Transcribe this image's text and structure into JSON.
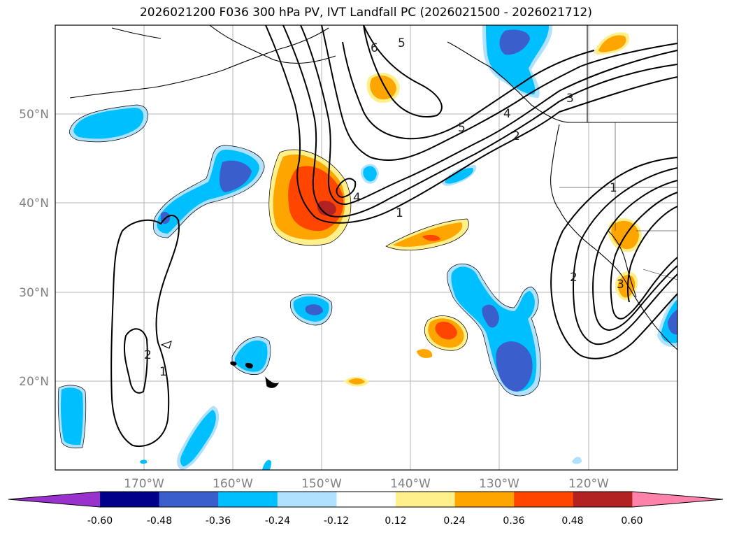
{
  "title": "2026021200 F036 300 hPa PV, IVT Landfall PC (2026021500 - 2026021712)",
  "map": {
    "lat_labels": [
      "50°N",
      "40°N",
      "30°N",
      "20°N"
    ],
    "lon_labels": [
      "170°W",
      "160°W",
      "150°W",
      "140°W",
      "130°W",
      "120°W"
    ],
    "lon_range": [
      -180,
      -110
    ],
    "lat_range": [
      10,
      60
    ],
    "contour_labels": [
      "6",
      "5",
      "5",
      "4",
      "4",
      "3",
      "3",
      "2",
      "2",
      "2",
      "1",
      "1",
      "1"
    ]
  },
  "colorbar": {
    "ticks": [
      "-0.60",
      "-0.48",
      "-0.36",
      "-0.24",
      "-0.12",
      "0.12",
      "0.24",
      "0.36",
      "0.48",
      "0.60"
    ],
    "colors": [
      "#9932cc",
      "#00008b",
      "#3a5fcd",
      "#00bfff",
      "#b0e2ff",
      "#ffffff",
      "#fff08c",
      "#ffa500",
      "#ff4500",
      "#b22222",
      "#ff82ab"
    ]
  }
}
